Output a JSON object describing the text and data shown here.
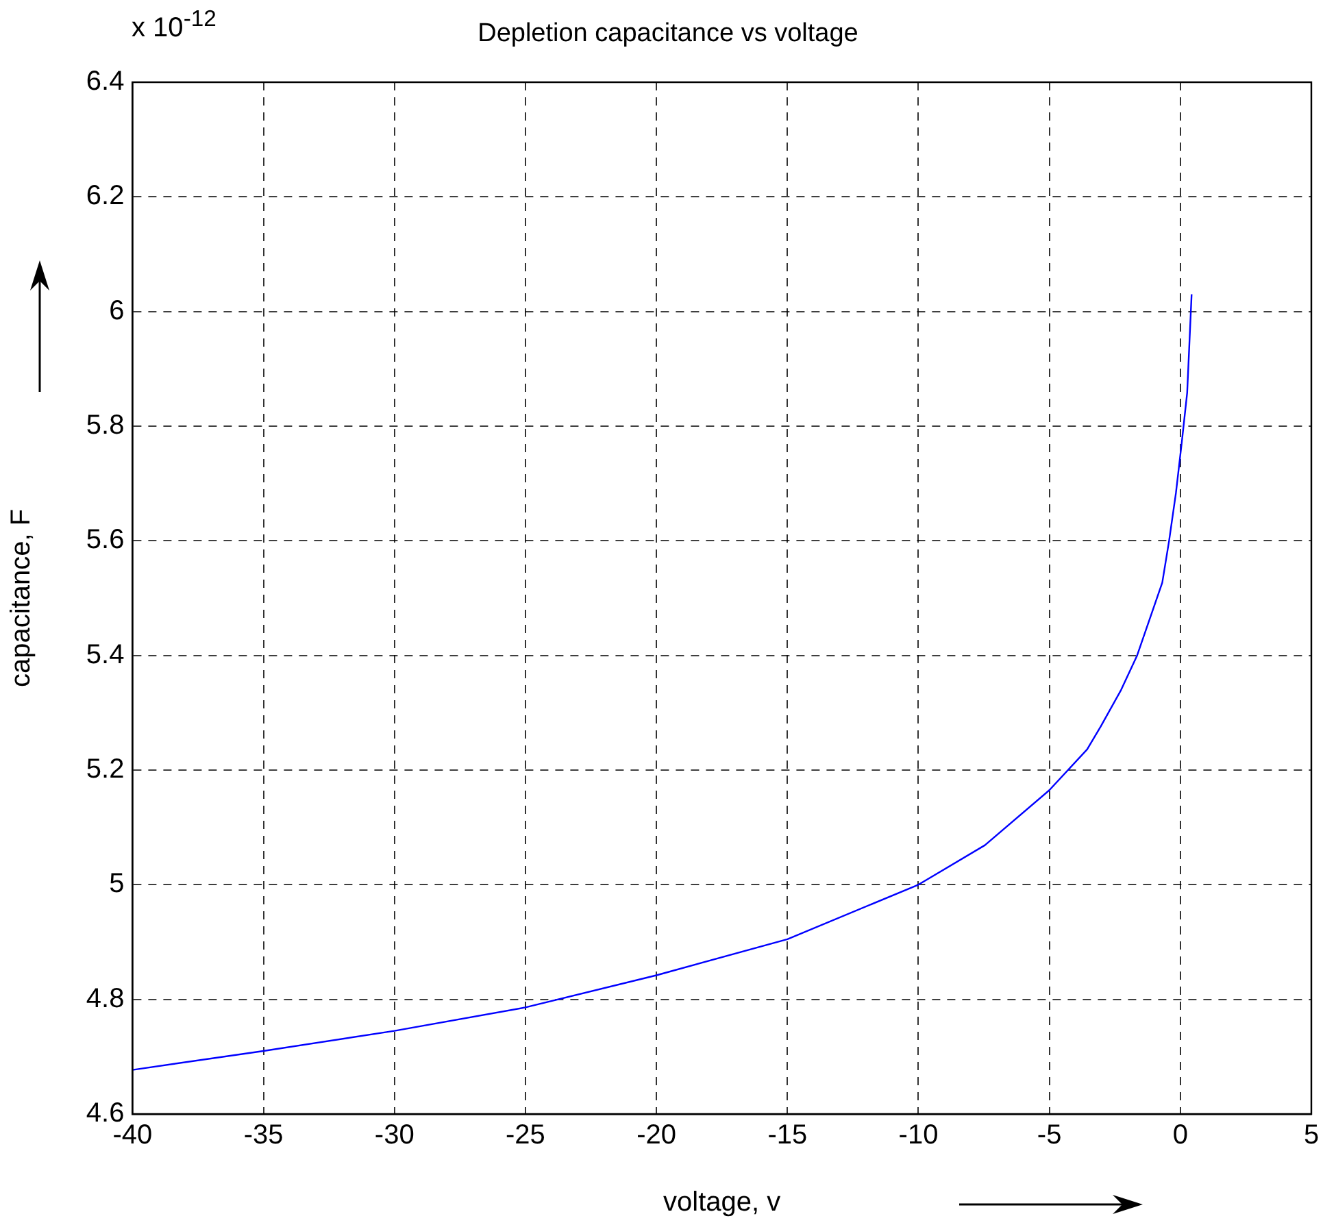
{
  "chart_data": {
    "type": "line",
    "title": "Depletion capacitance vs voltage",
    "xlabel": "voltage, v",
    "ylabel": "capacitance, F",
    "annotations": [
      "x 10$^{-12}$"
    ],
    "x": [
      -40,
      -35,
      -30,
      -25,
      -20,
      -15,
      -10,
      -7.46,
      -5,
      -3.56,
      -3.04,
      -2.26,
      -1.65,
      -0.69,
      -0.43,
      -0.17,
      0.05,
      0.26,
      0.43
    ],
    "series": [
      {
        "color": "#0000ff",
        "values": [
          4.677,
          4.71,
          4.745,
          4.786,
          4.842,
          4.905,
          5.0,
          5.069,
          5.165,
          5.236,
          5.276,
          5.34,
          5.4,
          5.527,
          5.6,
          5.683,
          5.77,
          5.858,
          6.03
        ]
      }
    ],
    "xlim": [
      -40,
      5
    ],
    "xticks": [
      -40,
      -35,
      -30,
      -25,
      -20,
      -15,
      -10,
      -5,
      0,
      5
    ],
    "ylim": [
      4.6,
      6.4
    ],
    "yticks": [
      4.6,
      4.8,
      5,
      5.2,
      5.4,
      5.6,
      5.8,
      6,
      6.2,
      6.4
    ],
    "grid": true,
    "legend": false,
    "marker": "none",
    "line_style": "solid"
  }
}
